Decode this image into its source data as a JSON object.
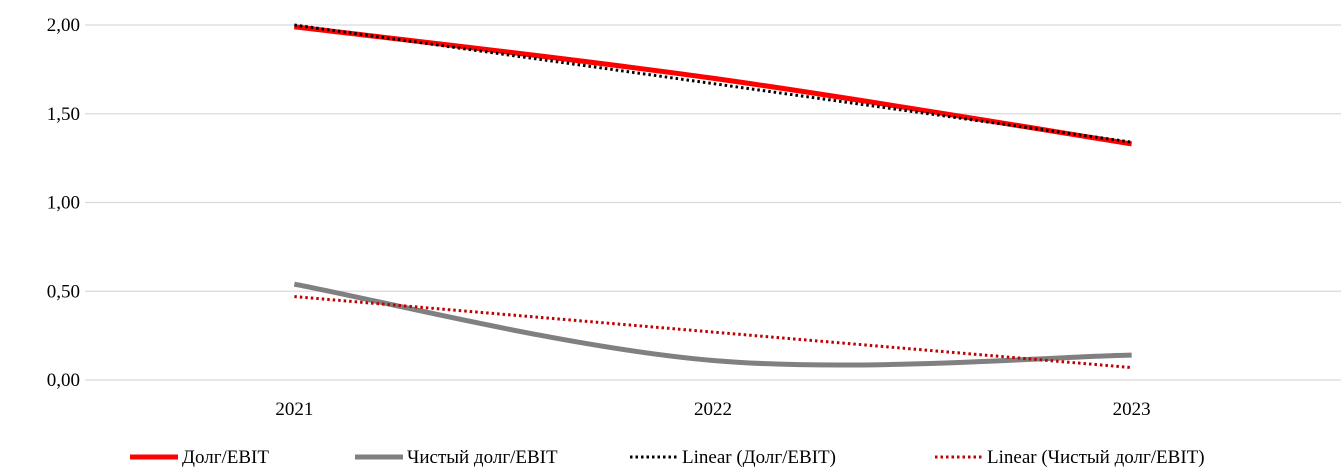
{
  "chart_data": {
    "type": "line",
    "categories": [
      "2021",
      "2022",
      "2023"
    ],
    "ylim": [
      0,
      2
    ],
    "yticks": [
      "0,00",
      "0,50",
      "1,00",
      "1,50",
      "2,00"
    ],
    "ytick_values": [
      0,
      0.5,
      1,
      1.5,
      2
    ],
    "grid": true,
    "legend_position": "bottom",
    "series": [
      {
        "name": "Долг/EBIT",
        "values": [
          1.99,
          1.7,
          1.33
        ],
        "color": "#ff0000",
        "style": "solid-smooth"
      },
      {
        "name": "Чистый долг/EBIT",
        "values": [
          0.54,
          0.11,
          0.14
        ],
        "color": "#808080",
        "style": "solid-smooth"
      },
      {
        "name": "Linear (Долг/EBIT)",
        "values": [
          2.0,
          1.67,
          1.34
        ],
        "color": "#000000",
        "style": "dotted"
      },
      {
        "name": "Linear (Чистый долг/EBIT)",
        "values": [
          0.47,
          0.27,
          0.07
        ],
        "color": "#c00000",
        "style": "dotted"
      }
    ]
  }
}
